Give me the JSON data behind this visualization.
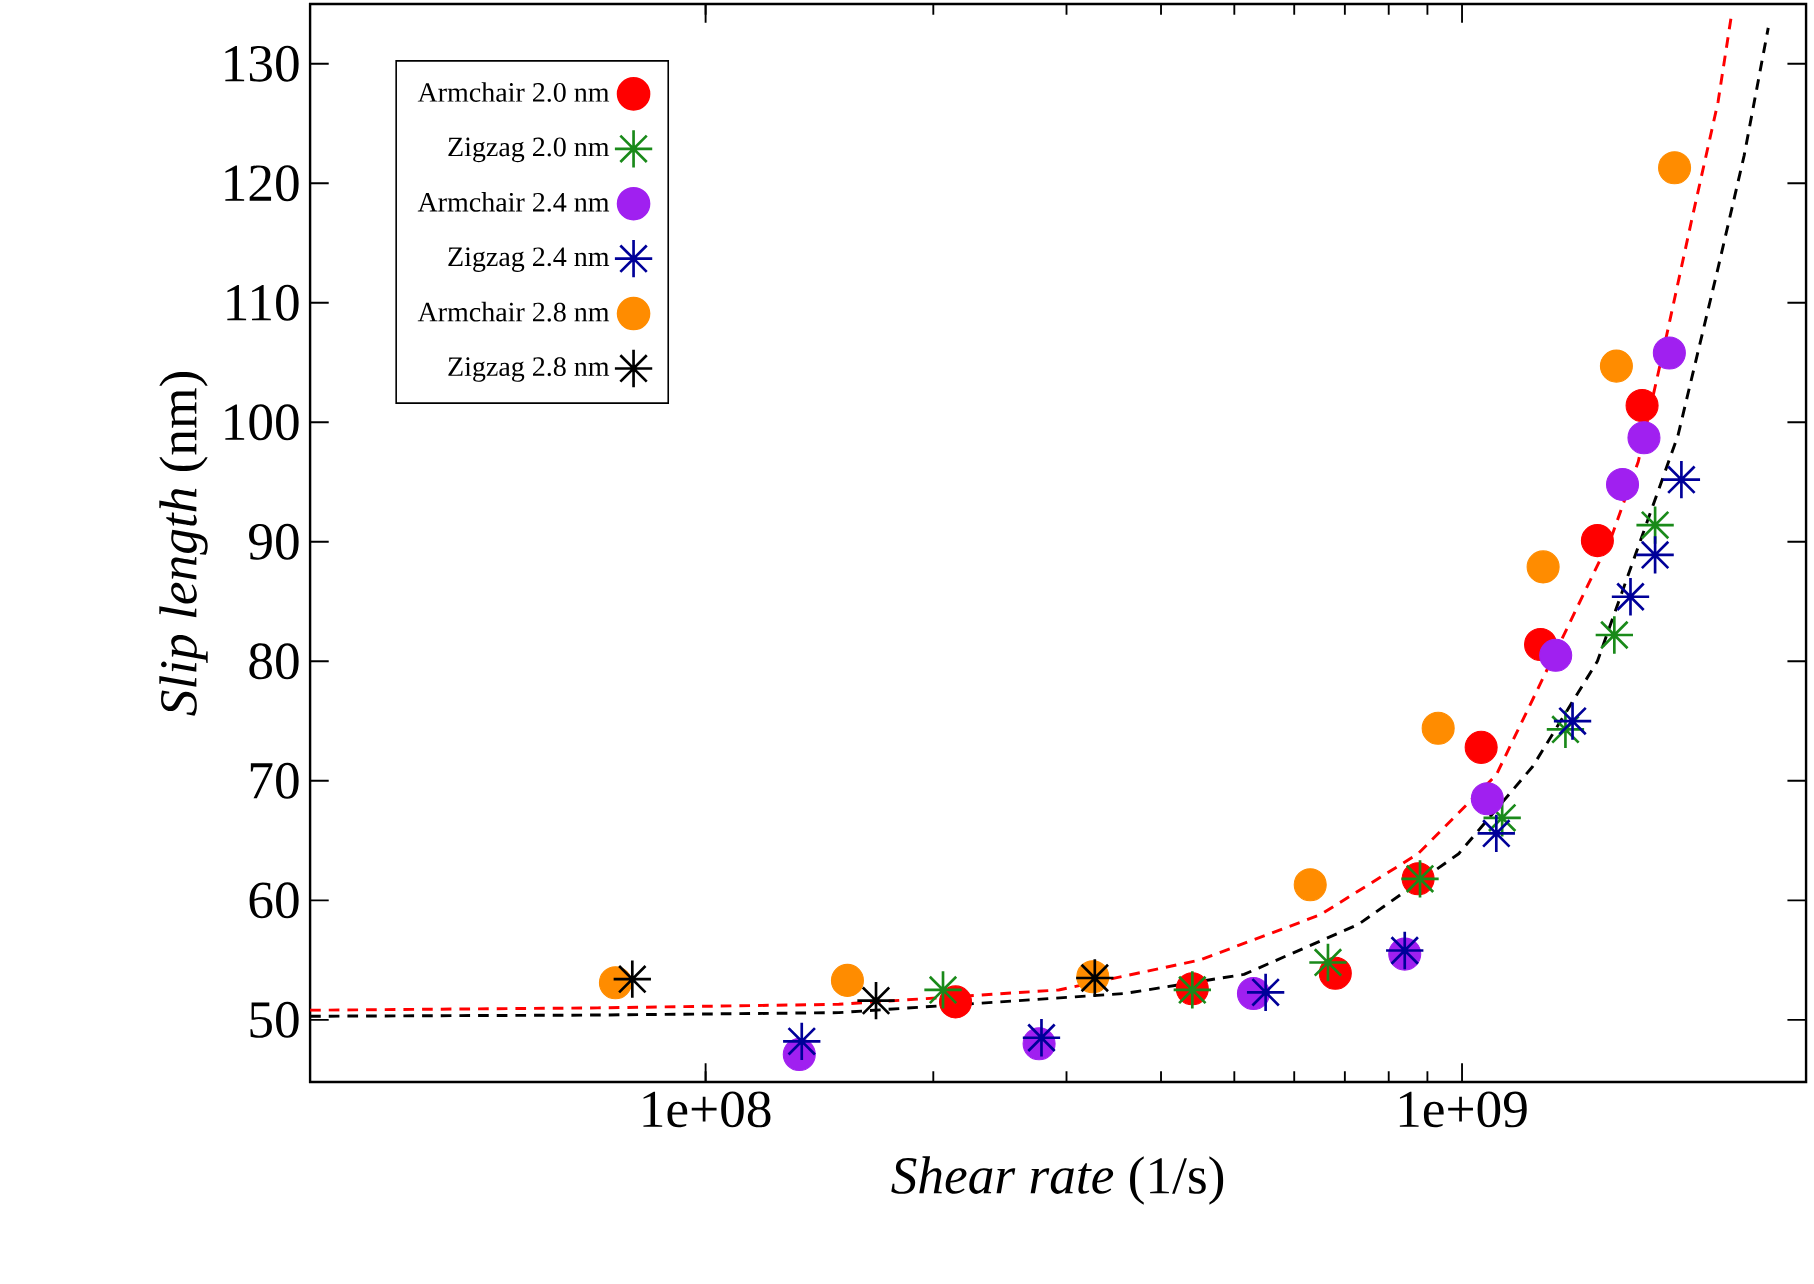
{
  "chart_data": {
    "type": "scatter",
    "xlabel": "*Shear rate* (1/s)",
    "ylabel": "*Slip length* (nm)",
    "log": "x",
    "xlim": [
      30000000.0,
      2850000000.0
    ],
    "ylim": [
      44.8,
      135
    ],
    "xticks": [
      {
        "value": 100000000.0,
        "label": "1e+08"
      },
      {
        "value": 1000000000.0,
        "label": "1e+09"
      }
    ],
    "yticks": [
      50,
      60,
      70,
      80,
      90,
      100,
      110,
      120,
      130
    ],
    "legend": "top left",
    "series": [
      {
        "name": "Armchair 2.0 nm",
        "marker": "circle",
        "color": "#ff0000",
        "x": [
          214000000.0,
          440000000.0,
          680000000.0,
          875000000.0,
          1060000000.0,
          1270000000.0,
          1510000000.0,
          1730000000.0
        ],
        "values": [
          51.5,
          52.6,
          53.9,
          61.8,
          72.8,
          81.4,
          90.1,
          101.4
        ]
      },
      {
        "name": "Zigzag 2.0 nm",
        "marker": "cross",
        "color": "#1a8a1a",
        "x": [
          206000000.0,
          440000000.0,
          665000000.0,
          880000000.0,
          1130000000.0,
          1370000000.0,
          1590000000.0,
          1800000000.0
        ],
        "values": [
          52.5,
          52.5,
          54.8,
          61.8,
          66.9,
          74.3,
          82.2,
          91.4
        ]
      },
      {
        "name": "Armchair 2.4 nm",
        "marker": "circle",
        "color": "#a020f0",
        "x": [
          133000000.0,
          276000000.0,
          530000000.0,
          840000000.0,
          1080000000.0,
          1330000000.0,
          1630000000.0,
          1740000000.0,
          1880000000.0
        ],
        "values": [
          47.1,
          48.0,
          52.2,
          55.5,
          68.5,
          80.5,
          94.8,
          98.7,
          105.8
        ]
      },
      {
        "name": "Zigzag 2.4 nm",
        "marker": "cross",
        "color": "#000099",
        "x": [
          134000000.0,
          278000000.0,
          550000000.0,
          840000000.0,
          1110000000.0,
          1400000000.0,
          1670000000.0,
          1800000000.0,
          1950000000.0
        ],
        "values": [
          48.2,
          48.5,
          52.3,
          55.8,
          65.6,
          75.0,
          85.4,
          88.9,
          95.2
        ]
      },
      {
        "name": "Armchair 2.8 nm",
        "marker": "circle",
        "color": "#ff8c00",
        "x": [
          76000000.0,
          154000000.0,
          325000000.0,
          630000000.0,
          930000000.0,
          1280000000.0,
          1600000000.0,
          1910000000.0
        ],
        "values": [
          53.1,
          53.3,
          53.6,
          61.3,
          74.4,
          87.9,
          104.7,
          121.3
        ]
      },
      {
        "name": "Zigzag 2.8 nm",
        "marker": "cross",
        "color": "#000000",
        "x": [
          80000000.0,
          168000000.0,
          327000000.0
        ],
        "values": [
          53.4,
          51.6,
          53.5
        ]
      },
      {
        "type": "line",
        "line_style": "dashed",
        "marker": "none",
        "color": "#ff0000",
        "x": [
          30000000.0,
          72000000.0,
          150000000.0,
          293000000.0,
          450000000.0,
          650000000.0,
          875000000.0,
          1110000000.0,
          1580000000.0,
          1710000000.0,
          1850000000.0,
          2010000000.0,
          2180000000.0,
          2270000000.0
        ],
        "values": [
          50.8,
          51.0,
          51.3,
          52.5,
          55.0,
          58.8,
          63.9,
          70.5,
          90.6,
          96.7,
          106.3,
          116.8,
          126.8,
          134.0
        ]
      },
      {
        "type": "line",
        "line_style": "dashed",
        "marker": "none",
        "color": "#000000",
        "x": [
          30000000.0,
          72000000.0,
          150000000.0,
          358000000.0,
          515000000.0,
          730000000.0,
          990000000.0,
          1240000000.0,
          1510000000.0,
          1930000000.0,
          2180000000.0,
          2360000000.0,
          2540000000.0
        ],
        "values": [
          50.3,
          50.4,
          50.6,
          52.2,
          53.8,
          58.0,
          63.9,
          71.2,
          80.0,
          98.9,
          112.9,
          122.3,
          133.0
        ]
      }
    ]
  }
}
